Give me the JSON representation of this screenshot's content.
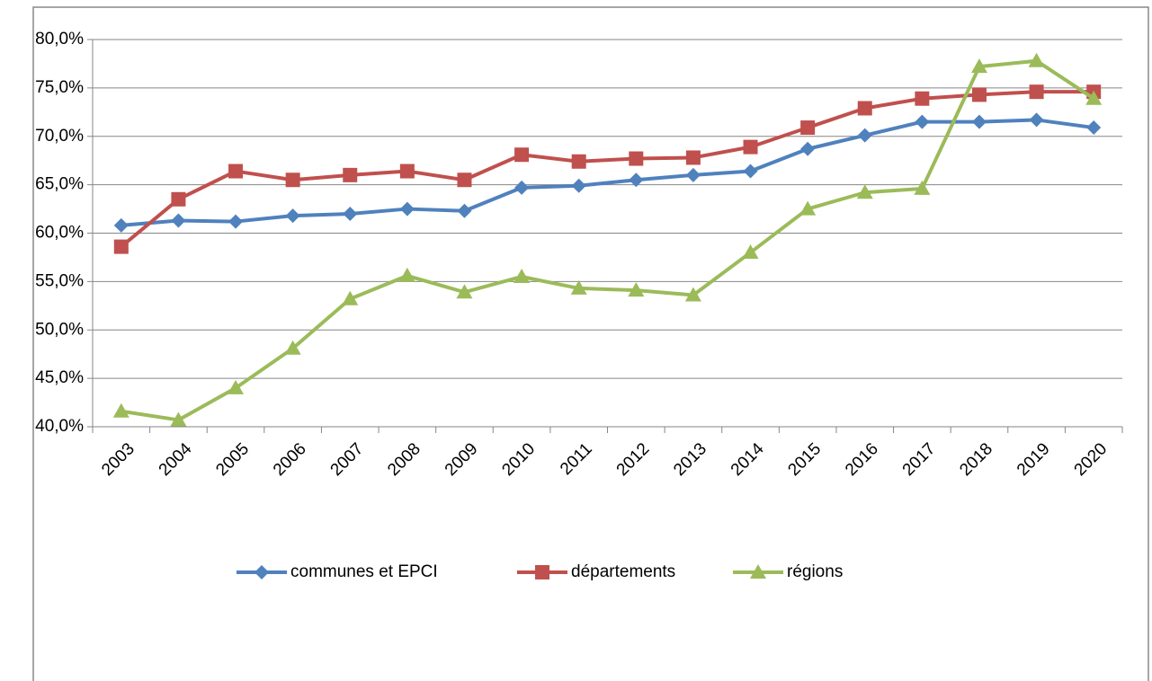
{
  "chart_data": {
    "type": "line",
    "categories": [
      "2003",
      "2004",
      "2005",
      "2006",
      "2007",
      "2008",
      "2009",
      "2010",
      "2011",
      "2012",
      "2013",
      "2014",
      "2015",
      "2016",
      "2017",
      "2018",
      "2019",
      "2020"
    ],
    "series": [
      {
        "name": "communes et EPCI",
        "color": "#4f81bd",
        "marker": "diamond",
        "values": [
          60.8,
          61.3,
          61.2,
          61.8,
          62.0,
          62.5,
          62.3,
          64.7,
          64.9,
          65.5,
          66.0,
          66.4,
          68.7,
          70.1,
          71.5,
          71.5,
          71.7,
          70.9
        ]
      },
      {
        "name": "départements",
        "color": "#c0504d",
        "marker": "square",
        "values": [
          58.6,
          63.5,
          66.4,
          65.5,
          66.0,
          66.4,
          65.5,
          68.1,
          67.4,
          67.7,
          67.8,
          68.9,
          70.9,
          72.9,
          73.9,
          74.3,
          74.6,
          74.6
        ]
      },
      {
        "name": "régions",
        "color": "#9bbb59",
        "marker": "triangle",
        "values": [
          41.6,
          40.7,
          44.0,
          48.1,
          53.2,
          55.6,
          53.9,
          55.5,
          54.3,
          54.1,
          53.6,
          58.0,
          62.5,
          64.2,
          64.6,
          77.2,
          77.8,
          73.9
        ]
      }
    ],
    "ylim": [
      40,
      80
    ],
    "yticks": [
      {
        "value": 40,
        "label": "40,0%"
      },
      {
        "value": 45,
        "label": "45,0%"
      },
      {
        "value": 50,
        "label": "50,0%"
      },
      {
        "value": 55,
        "label": "55,0%"
      },
      {
        "value": 60,
        "label": "60,0%"
      },
      {
        "value": 65,
        "label": "65,0%"
      },
      {
        "value": 70,
        "label": "70,0%"
      },
      {
        "value": 75,
        "label": "75,0%"
      },
      {
        "value": 80,
        "label": "80,0%"
      }
    ],
    "grid": true,
    "legend": "bottom"
  }
}
